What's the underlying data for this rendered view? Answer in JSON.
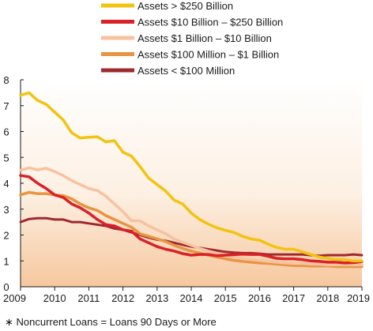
{
  "chart_data": {
    "type": "line",
    "title": "",
    "xlabel": "",
    "ylabel": "",
    "xlim": [
      2009,
      2019
    ],
    "ylim": [
      0,
      8
    ],
    "x_ticks": [
      "2009",
      "2010",
      "2011",
      "2012",
      "2013",
      "2014",
      "2015",
      "2016",
      "2017",
      "2018",
      "2019"
    ],
    "y_ticks": [
      "0",
      "1",
      "2",
      "3",
      "4",
      "5",
      "6",
      "7",
      "8"
    ],
    "grid": false,
    "legend_position": "top-center",
    "footnote": "∗  Noncurrent Loans = Loans 90 Days or More",
    "x": [
      2009.0,
      2009.25,
      2009.5,
      2009.75,
      2010.0,
      2010.25,
      2010.5,
      2010.75,
      2011.0,
      2011.25,
      2011.5,
      2011.75,
      2012.0,
      2012.25,
      2012.5,
      2012.75,
      2013.0,
      2013.25,
      2013.5,
      2013.75,
      2014.0,
      2014.25,
      2014.5,
      2014.75,
      2015.0,
      2015.25,
      2015.5,
      2015.75,
      2016.0,
      2016.25,
      2016.5,
      2016.75,
      2017.0,
      2017.25,
      2017.5,
      2017.75,
      2018.0,
      2018.25,
      2018.5,
      2018.75,
      2019.0
    ],
    "series": [
      {
        "name": "Assets > $250 Billion",
        "color": "#f2c30f",
        "width": 3.5,
        "values": [
          7.4,
          7.5,
          7.2,
          7.05,
          6.75,
          6.45,
          5.95,
          5.75,
          5.78,
          5.8,
          5.6,
          5.65,
          5.2,
          5.05,
          4.65,
          4.2,
          3.95,
          3.7,
          3.35,
          3.2,
          2.85,
          2.6,
          2.42,
          2.28,
          2.18,
          2.1,
          1.95,
          1.85,
          1.8,
          1.65,
          1.52,
          1.45,
          1.45,
          1.35,
          1.25,
          1.15,
          1.1,
          1.05,
          1.05,
          1.0,
          1.0
        ]
      },
      {
        "name": "Assets $10 Billion – $250 Billion",
        "color": "#d92128",
        "width": 3.5,
        "values": [
          4.3,
          4.25,
          4.0,
          3.8,
          3.55,
          3.45,
          3.2,
          3.05,
          2.85,
          2.6,
          2.4,
          2.35,
          2.2,
          2.15,
          1.85,
          1.7,
          1.55,
          1.45,
          1.38,
          1.28,
          1.22,
          1.25,
          1.25,
          1.2,
          1.22,
          1.24,
          1.26,
          1.25,
          1.25,
          1.18,
          1.1,
          1.08,
          1.08,
          1.05,
          1.0,
          0.98,
          0.95,
          0.95,
          0.92,
          0.93,
          0.97
        ]
      },
      {
        "name": "Assets $1 Billion – $10 Billion",
        "color": "#f7c2a0",
        "width": 3.5,
        "values": [
          4.5,
          4.6,
          4.52,
          4.58,
          4.45,
          4.3,
          4.1,
          3.95,
          3.8,
          3.72,
          3.5,
          3.2,
          2.9,
          2.55,
          2.55,
          2.35,
          2.2,
          2.05,
          1.85,
          1.72,
          1.6,
          1.48,
          1.38,
          1.3,
          1.22,
          1.15,
          1.08,
          1.05,
          1.02,
          0.98,
          0.95,
          0.92,
          0.9,
          0.9,
          0.88,
          0.87,
          0.85,
          0.85,
          0.85,
          0.85,
          0.85
        ]
      },
      {
        "name": "Assets $100 Million – $1 Billion",
        "color": "#e89440",
        "width": 3.5,
        "values": [
          3.55,
          3.65,
          3.6,
          3.6,
          3.55,
          3.52,
          3.4,
          3.2,
          3.05,
          2.95,
          2.75,
          2.6,
          2.45,
          2.3,
          2.05,
          1.95,
          1.85,
          1.75,
          1.6,
          1.48,
          1.38,
          1.3,
          1.22,
          1.15,
          1.08,
          1.02,
          0.98,
          0.95,
          0.92,
          0.9,
          0.88,
          0.85,
          0.82,
          0.82,
          0.8,
          0.8,
          0.8,
          0.78,
          0.78,
          0.78,
          0.78
        ]
      },
      {
        "name": "Assets < $100 Million",
        "color": "#9e2a2f",
        "width": 3.0,
        "values": [
          2.5,
          2.62,
          2.65,
          2.65,
          2.6,
          2.6,
          2.5,
          2.5,
          2.45,
          2.4,
          2.35,
          2.25,
          2.2,
          2.1,
          2.0,
          1.9,
          1.82,
          1.78,
          1.7,
          1.62,
          1.55,
          1.5,
          1.45,
          1.4,
          1.35,
          1.32,
          1.3,
          1.3,
          1.28,
          1.25,
          1.25,
          1.25,
          1.25,
          1.25,
          1.22,
          1.2,
          1.22,
          1.22,
          1.22,
          1.25,
          1.22
        ]
      }
    ]
  }
}
